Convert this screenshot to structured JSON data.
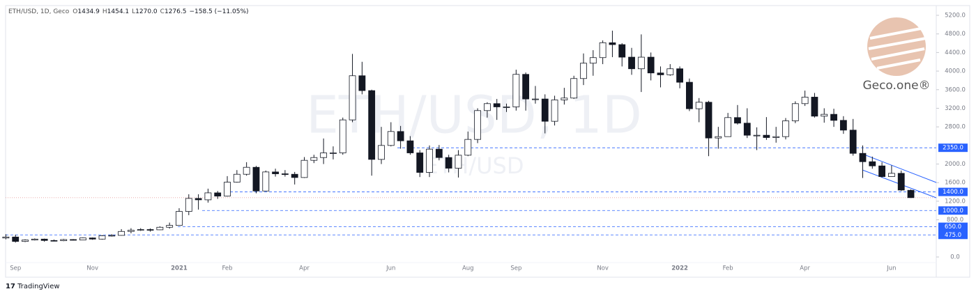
{
  "header": {
    "symbol": "ETH/USD, 1D, Geco",
    "fields": [
      {
        "key": "O",
        "value": "1434.9"
      },
      {
        "key": "H",
        "value": "1454.1"
      },
      {
        "key": "L",
        "value": "1270.0"
      },
      {
        "key": "C",
        "value": "1276.5"
      }
    ],
    "change": "−158.5 (−11.05%)"
  },
  "watermark": {
    "main": "ETH/USD, 1D",
    "sub": "ETH/USD"
  },
  "logo": "Geco.one®",
  "footer": "TradingView",
  "chart_data": {
    "type": "candlestick",
    "categories": [
      null,
      "Sep",
      null,
      null,
      null,
      null,
      null,
      null,
      null,
      "Nov",
      null,
      null,
      null,
      null,
      null,
      null,
      null,
      null,
      "2021",
      null,
      null,
      null,
      null,
      "Feb",
      null,
      null,
      null,
      null,
      null,
      null,
      null,
      "Apr",
      null,
      null,
      null,
      null,
      null,
      null,
      null,
      null,
      "Jun",
      null,
      null,
      null,
      null,
      null,
      null,
      null,
      "Aug",
      null,
      null,
      null,
      null,
      "Sep",
      null,
      null,
      null,
      null,
      null,
      null,
      null,
      null,
      "Nov",
      null,
      null,
      null,
      null,
      null,
      null,
      null,
      "2022",
      null,
      null,
      null,
      null,
      "Feb",
      null,
      null,
      null,
      null,
      null,
      null,
      null,
      "Apr",
      null,
      null,
      null,
      null,
      null,
      null,
      null,
      null,
      "Jun",
      null,
      null
    ],
    "open": [
      408,
      430,
      335,
      365,
      385,
      355,
      350,
      375,
      365,
      410,
      385,
      455,
      465,
      550,
      575,
      590,
      585,
      640,
      680,
      980,
      1260,
      1230,
      1380,
      1310,
      1610,
      1780,
      1930,
      1420,
      1830,
      1790,
      1780,
      1710,
      2080,
      2140,
      2240,
      2240,
      2950,
      3900,
      3580,
      2100,
      2400,
      2700,
      2500,
      2240,
      1820,
      2320,
      2140,
      1910,
      2190,
      2530,
      3150,
      3300,
      3230,
      3230,
      3930,
      3400,
      3400,
      2920,
      3380,
      3420,
      3840,
      4170,
      4290,
      4610,
      4570,
      4300,
      4050,
      4300,
      3960,
      3920,
      4050,
      3760,
      3190,
      3330,
      2560,
      2590,
      3000,
      2880,
      2620,
      2620,
      2570,
      2590,
      2930,
      3300,
      3440,
      3030,
      3070,
      2940,
      2730,
      2230,
      2050,
      1960,
      1730,
      1800,
      1434.9
    ],
    "high": [
      490,
      480,
      380,
      400,
      395,
      375,
      390,
      385,
      420,
      420,
      470,
      490,
      600,
      620,
      620,
      615,
      660,
      740,
      1050,
      1350,
      1350,
      1470,
      1420,
      1740,
      1870,
      2040,
      1960,
      1860,
      1900,
      1870,
      1830,
      2150,
      2200,
      2550,
      2380,
      3000,
      4370,
      4200,
      3600,
      2800,
      2900,
      2820,
      2600,
      2300,
      2400,
      2410,
      2200,
      2300,
      2700,
      3200,
      3330,
      3400,
      3300,
      4030,
      3970,
      3680,
      3500,
      3470,
      3640,
      3900,
      4380,
      4450,
      4660,
      4870,
      4600,
      4500,
      4790,
      4400,
      4100,
      4150,
      4100,
      3840,
      3420,
      3360,
      2800,
      3100,
      3270,
      3200,
      2790,
      3010,
      2800,
      2990,
      3350,
      3580,
      3530,
      3200,
      3190,
      3030,
      2970,
      2400,
      2160,
      2040,
      1970,
      1860,
      1454.1
    ],
    "low": [
      380,
      310,
      320,
      355,
      330,
      335,
      340,
      355,
      360,
      370,
      375,
      440,
      460,
      510,
      560,
      545,
      580,
      610,
      680,
      900,
      1020,
      1170,
      1250,
      1300,
      1600,
      1750,
      1370,
      1420,
      1730,
      1730,
      1560,
      1700,
      2020,
      2000,
      2100,
      2200,
      2900,
      3500,
      1750,
      2000,
      2380,
      2330,
      2200,
      1720,
      1720,
      2080,
      1820,
      1710,
      2170,
      2450,
      3000,
      2950,
      3120,
      3150,
      3150,
      3300,
      2660,
      2830,
      3280,
      3400,
      3700,
      3900,
      4150,
      4300,
      4100,
      3920,
      3550,
      3800,
      3650,
      3900,
      3630,
      3140,
      2900,
      2170,
      2330,
      2600,
      2850,
      2560,
      2300,
      2520,
      2460,
      2530,
      2880,
      3250,
      3000,
      2890,
      2800,
      2650,
      2180,
      1700,
      1900,
      1710,
      1730,
      1420,
      1270
    ],
    "close": [
      430,
      335,
      365,
      385,
      355,
      350,
      375,
      365,
      410,
      385,
      455,
      465,
      550,
      575,
      590,
      585,
      640,
      680,
      980,
      1260,
      1230,
      1380,
      1310,
      1610,
      1780,
      1930,
      1420,
      1830,
      1790,
      1780,
      1710,
      2080,
      2140,
      2240,
      2240,
      2950,
      3900,
      3580,
      2100,
      2400,
      2700,
      2500,
      2240,
      1820,
      2320,
      2140,
      1910,
      2190,
      2530,
      3150,
      3300,
      3230,
      3230,
      3930,
      3400,
      3400,
      2920,
      3380,
      3420,
      3840,
      4170,
      4290,
      4610,
      4570,
      4300,
      4050,
      4300,
      3960,
      3920,
      4050,
      3760,
      3190,
      3330,
      2560,
      2590,
      3000,
      2880,
      2620,
      2620,
      2570,
      2590,
      2930,
      3300,
      3440,
      3030,
      3070,
      2940,
      2730,
      2230,
      2050,
      1960,
      1730,
      1800,
      1440,
      1276.5
    ],
    "up_color": "#ffffff",
    "down_color": "#131722",
    "level_color": "#2962ff",
    "ylim": [
      -315,
      5410
    ],
    "yticks": [
      {
        "value": 0,
        "label": "0.0"
      },
      {
        "value": 800,
        "label": "800.0"
      },
      {
        "value": 1200,
        "label": "1200.0"
      },
      {
        "value": 1600,
        "label": "1600.0"
      },
      {
        "value": 2000,
        "label": "2000.0"
      },
      {
        "value": 2800,
        "label": "2800.0"
      },
      {
        "value": 3200,
        "label": "3200.0"
      },
      {
        "value": 3600,
        "label": "3600.0"
      },
      {
        "value": 4000,
        "label": "4000.0"
      },
      {
        "value": 4400,
        "label": "4400.0"
      },
      {
        "value": 4800,
        "label": "4800.0"
      },
      {
        "value": 5200,
        "label": "5200.0"
      }
    ],
    "levels": [
      {
        "value": 2350,
        "label": "2350.0"
      },
      {
        "value": 1400,
        "label": "1400.0"
      },
      {
        "value": 1000,
        "label": "1000.0"
      },
      {
        "value": 650,
        "label": "650.0"
      },
      {
        "value": 475,
        "label": "475.0"
      }
    ]
  }
}
